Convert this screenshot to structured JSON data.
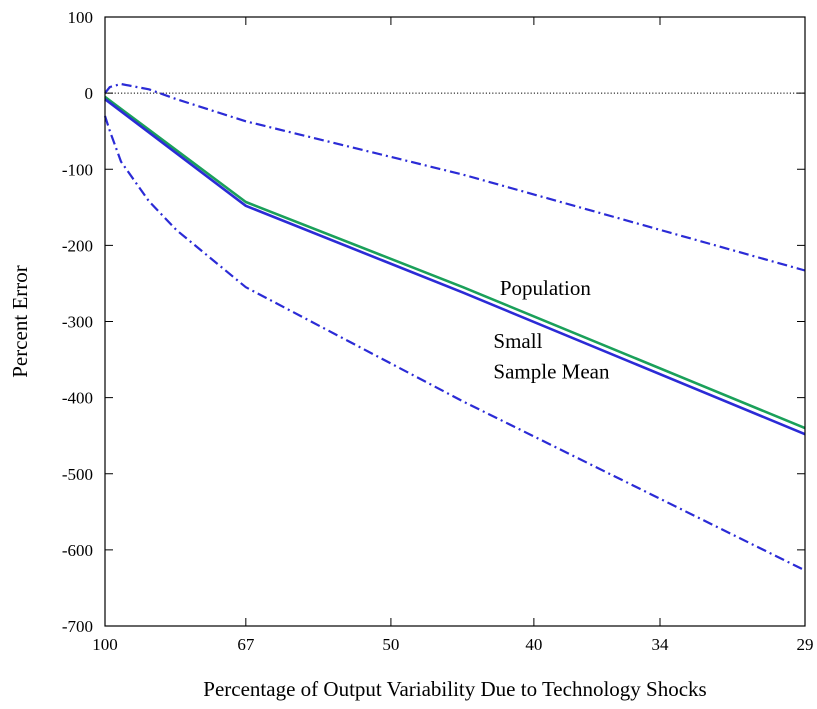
{
  "chart_data": {
    "type": "line",
    "title": "",
    "xlabel": "Percentage of Output Variability Due to Technology Shocks",
    "ylabel": "Percent Error",
    "x_scale": "reciprocal",
    "x_ticks": [
      100,
      67,
      50,
      40,
      34,
      29
    ],
    "xlim": [
      100,
      29
    ],
    "ylim": [
      -700,
      100
    ],
    "y_ticks": [
      100,
      0,
      -100,
      -200,
      -300,
      -400,
      -500,
      -600,
      -700
    ],
    "grid": false,
    "reference_line": {
      "y": 0,
      "style": "dotted"
    },
    "series": [
      {
        "color": "#1aa05a",
        "style": "solid",
        "x": [
          100,
          67,
          44.4,
          29
        ],
        "y": [
          -5,
          -143,
          -255,
          -440
        ]
      },
      {
        "color": "#2b2bd6",
        "style": "solid",
        "x": [
          100,
          67,
          44.4,
          29
        ],
        "y": [
          -8,
          -148,
          -262,
          -448
        ]
      },
      {
        "color": "#2b2bd6",
        "style": "dash-dot",
        "x": [
          100,
          98.3,
          94.7,
          86.7,
          80,
          67,
          44.4,
          29
        ],
        "y": [
          0,
          8,
          12,
          5,
          -8,
          -37,
          -107,
          -233
        ]
      },
      {
        "color": "#2b2bd6",
        "style": "dash-dot",
        "x": [
          100,
          98.3,
          94.7,
          86.7,
          80,
          67,
          44.4,
          29
        ],
        "y": [
          -30,
          -50,
          -90,
          -142,
          -180,
          -255,
          -405,
          -627
        ]
      }
    ],
    "annotations": [
      {
        "text": "Population",
        "x": 42,
        "y": -265
      },
      {
        "text": "Small",
        "x": 42.4,
        "y": -335
      },
      {
        "text": "Sample Mean",
        "x": 42.4,
        "y": -375
      }
    ]
  }
}
